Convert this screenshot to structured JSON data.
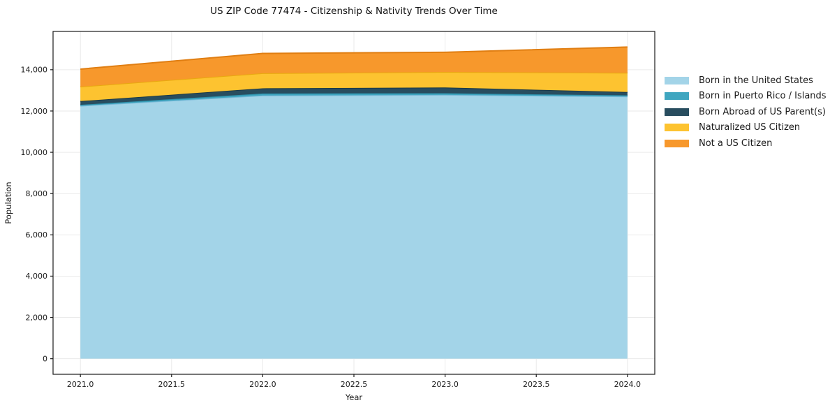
{
  "title": "US ZIP Code 77474 - Citizenship & Nativity Trends Over Time",
  "chart_data": {
    "type": "area",
    "stacked": true,
    "title": "US ZIP Code 77474 - Citizenship & Nativity Trends Over Time",
    "xlabel": "Year",
    "ylabel": "Population",
    "x": [
      2021,
      2022,
      2023,
      2024
    ],
    "series": [
      {
        "name": "Born in the United States",
        "color": "#A3D4E8",
        "edge": "#79B9D8",
        "values": [
          12250,
          12750,
          12780,
          12700
        ]
      },
      {
        "name": "Born in Puerto Rico / Islands",
        "color": "#3FA6C0",
        "edge": "#2E8FAA",
        "values": [
          50,
          100,
          80,
          60
        ]
      },
      {
        "name": "Born Abroad of US Parent(s)",
        "color": "#284D5F",
        "edge": "#1B3947",
        "values": [
          180,
          250,
          280,
          160
        ]
      },
      {
        "name": "Naturalized US Citizen",
        "color": "#FDC330",
        "edge": "#E8A90F",
        "values": [
          700,
          730,
          750,
          930
        ]
      },
      {
        "name": "Not a US Citizen",
        "color": "#F7982C",
        "edge": "#E07E12",
        "values": [
          850,
          960,
          955,
          1250
        ]
      }
    ],
    "totals_by_year": [
      14030,
      14790,
      14845,
      15100
    ],
    "xlim": [
      2020.85,
      2024.15
    ],
    "ylim": [
      -755,
      15855
    ],
    "xticks": [
      "2021.0",
      "2021.5",
      "2022.0",
      "2022.5",
      "2023.0",
      "2023.5",
      "2024.0"
    ],
    "xtick_values": [
      2021.0,
      2021.5,
      2022.0,
      2022.5,
      2023.0,
      2023.5,
      2024.0
    ],
    "yticks": [
      "0",
      "2,000",
      "4,000",
      "6,000",
      "8,000",
      "10,000",
      "12,000",
      "14,000"
    ],
    "ytick_values": [
      0,
      2000,
      4000,
      6000,
      8000,
      10000,
      12000,
      14000
    ],
    "grid": true,
    "grid_color": "#eaeaea",
    "spine_color": "#1a1a1a",
    "tick_color": "#1a1a1a",
    "legend_position": "outside-right"
  }
}
